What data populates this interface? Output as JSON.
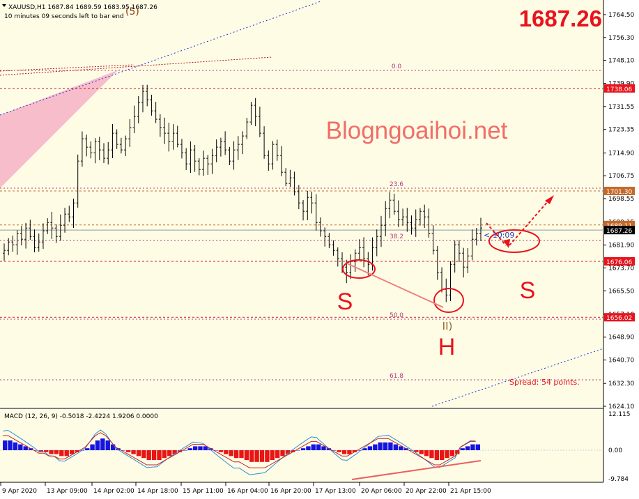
{
  "header": {
    "symbol_line": "XAUUSD,H1  1687.84 1689.59 1683.95 1687.26",
    "timer_line": "10 minutes 09 seconds left to bar end",
    "wave_label_top": "(5)"
  },
  "big_price": "1687.26",
  "watermark": "Blogngoaihoi.net",
  "spread_text": "Spread: 54 points.",
  "countdown_label": "< 10:09",
  "pattern_labels": {
    "left_shoulder": "S",
    "head": "H",
    "right_shoulder": "S",
    "wave_ii": "II)"
  },
  "fib_labels": [
    "0.0",
    "23.6",
    "38.2",
    "50.0",
    "61.8"
  ],
  "price_tags": {
    "tag_1738": "1738.06",
    "tag_1701": "1701.30",
    "tag_1689": "1689.11",
    "tag_1687": "1687.26",
    "tag_1676": "1676.06",
    "tag_1656": "1656.02"
  },
  "macd": {
    "title": "MACD (12, 26, 9) -0.5018 -2.4224 1.9206 0.0000",
    "axis_ticks": [
      "12.115",
      "0.00",
      "-9.784"
    ],
    "histogram": [
      5,
      5,
      4,
      3,
      2,
      1,
      0,
      -1,
      -1,
      -2,
      -2,
      -3,
      -3,
      -2,
      -1,
      0,
      1,
      3,
      5,
      6,
      5,
      3,
      1,
      0,
      -1,
      -2,
      -3,
      -4,
      -5,
      -5,
      -5,
      -4,
      -3,
      -2,
      -1,
      0,
      1,
      2,
      2,
      2,
      1,
      0,
      -1,
      -2,
      -3,
      -4,
      -4,
      -5,
      -6,
      -6,
      -6,
      -6,
      -5,
      -4,
      -3,
      -2,
      -1,
      0,
      1,
      2,
      3,
      3,
      2,
      1,
      0,
      -1,
      -2,
      -2,
      -1,
      0,
      1,
      2,
      3,
      4,
      4,
      4,
      3,
      2,
      1,
      0,
      -1,
      -2,
      -3,
      -4,
      -5,
      -5,
      -4,
      -3,
      -2,
      1,
      2,
      3,
      3
    ]
  },
  "chart_data": {
    "type": "candlestick",
    "symbol": "XAUUSD",
    "timeframe": "H1",
    "last_price": 1687.26,
    "ylim": [
      1624.0,
      1768.0
    ],
    "y_ticks": [
      "1764.50",
      "1756.30",
      "1748.10",
      "1739.90",
      "1731.55",
      "1723.35",
      "1714.90",
      "1706.75",
      "1698.55",
      "1690.15",
      "1681.90",
      "1673.70",
      "1665.50",
      "1657.10",
      "1648.90",
      "1640.70",
      "1632.30",
      "1624.10"
    ],
    "x_ticks": [
      "9 Apr 2020",
      "13 Apr 09:00",
      "14 Apr 02:00",
      "14 Apr 18:00",
      "15 Apr 11:00",
      "16 Apr 04:00",
      "16 Apr 20:00",
      "17 Apr 13:00",
      "20 Apr 06:00",
      "20 Apr 22:00",
      "21 Apr 15:00"
    ],
    "horizontal_levels": [
      1738.06,
      1701.3,
      1689.11,
      1687.26,
      1676.06,
      1656.02
    ],
    "close_series": [
      1680,
      1683,
      1682,
      1686,
      1684,
      1688,
      1685,
      1681,
      1683,
      1687,
      1690,
      1688,
      1685,
      1689,
      1693,
      1692,
      1697,
      1712,
      1720,
      1717,
      1715,
      1719,
      1716,
      1713,
      1716,
      1722,
      1718,
      1716,
      1720,
      1724,
      1728,
      1733,
      1737,
      1734,
      1730,
      1727,
      1724,
      1722,
      1719,
      1722,
      1718,
      1715,
      1711,
      1716,
      1712,
      1709,
      1713,
      1711,
      1714,
      1717,
      1719,
      1716,
      1712,
      1716,
      1718,
      1721,
      1726,
      1732,
      1728,
      1722,
      1714,
      1711,
      1718,
      1714,
      1708,
      1704,
      1706,
      1701,
      1697,
      1694,
      1699,
      1697,
      1690,
      1687,
      1685,
      1682,
      1680,
      1677,
      1674,
      1672,
      1676,
      1679,
      1681,
      1677,
      1675,
      1681,
      1685,
      1689,
      1695,
      1698,
      1694,
      1691,
      1692,
      1690,
      1688,
      1691,
      1694,
      1692,
      1686,
      1680,
      1672,
      1666,
      1664,
      1675,
      1682,
      1679,
      1674,
      1678,
      1684,
      1686,
      1688
    ]
  }
}
